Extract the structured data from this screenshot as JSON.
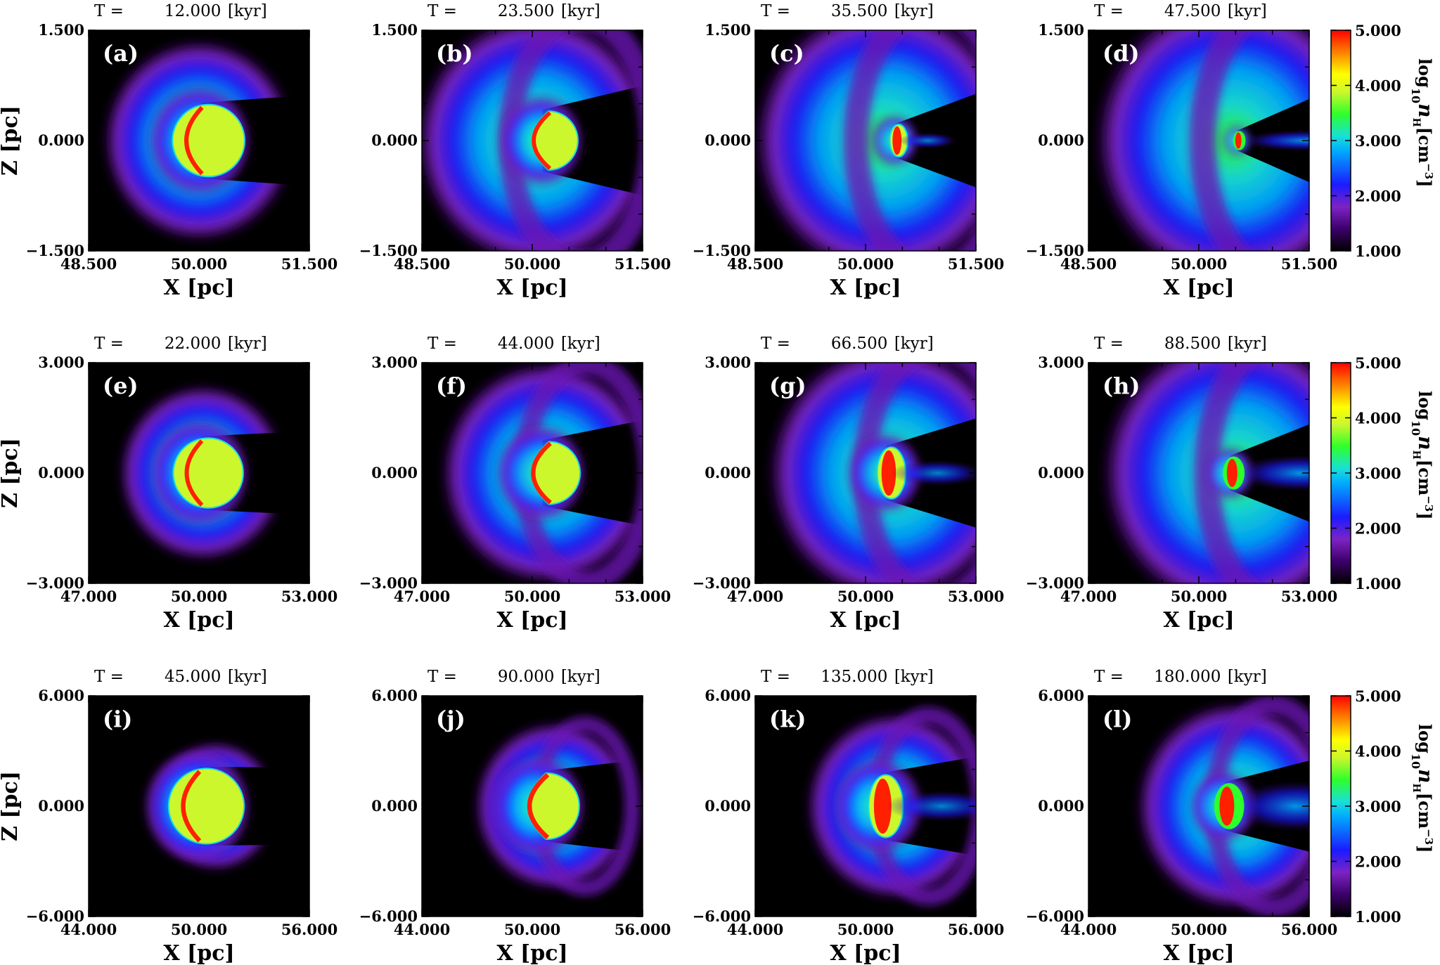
{
  "figure": {
    "colorbar_label_prefix": "log",
    "colorbar_label_sub": "10",
    "colorbar_label_var": "n",
    "colorbar_label_varsub": "H",
    "colorbar_label_unit": "[cm",
    "colorbar_label_exp": "−3",
    "colorbar_label_close": "]"
  },
  "chart_data": [
    {
      "panel": "(a)",
      "row": 0,
      "time_prefix": "T =",
      "time": "12.000",
      "time_unit": "[kyr]",
      "xlabel": "X [pc]",
      "ylabel": "Z [pc]",
      "xlim": [
        48.5,
        51.5
      ],
      "ylim": [
        -1.5,
        1.5
      ],
      "xticks": [
        "48.500",
        "50.000",
        "51.500"
      ],
      "yticks": [
        "1.500",
        "0.000",
        "−1.500"
      ],
      "clump": {
        "cx": 50.13,
        "r": 0.49,
        "state": "sphere"
      },
      "shell": {
        "cx": 50.0,
        "r": 1.4,
        "spread": 0.45,
        "curl": 0.0
      }
    },
    {
      "panel": "(b)",
      "row": 0,
      "time_prefix": "T =",
      "time": "23.500",
      "time_unit": "[kyr]",
      "xlabel": "X [pc]",
      "ylabel": "Z [pc]",
      "xlim": [
        48.5,
        51.5
      ],
      "ylim": [
        -1.5,
        1.5
      ],
      "xticks": [
        "48.500",
        "50.000",
        "51.500"
      ],
      "yticks": [
        "1.500",
        "0.000",
        "−1.500"
      ],
      "clump": {
        "cx": 50.22,
        "r": 0.4,
        "state": "cap"
      },
      "shell": {
        "cx": 50.05,
        "r": 1.75,
        "spread": 0.5,
        "curl": 0.55
      }
    },
    {
      "panel": "(c)",
      "row": 0,
      "time_prefix": "T =",
      "time": "35.500",
      "time_unit": "[kyr]",
      "xlabel": "X [pc]",
      "ylabel": "Z [pc]",
      "xlim": [
        48.5,
        51.5
      ],
      "ylim": [
        -1.5,
        1.5
      ],
      "xticks": [
        "48.500",
        "50.000",
        "51.500"
      ],
      "yticks": [
        "1.500",
        "0.000",
        "−1.500"
      ],
      "clump": {
        "cx": 50.45,
        "r": 0.22,
        "state": "core"
      },
      "shell": {
        "cx": 50.25,
        "r": 1.9,
        "spread": 0.55,
        "curl": 0.8
      }
    },
    {
      "panel": "(d)",
      "row": 0,
      "time_prefix": "T =",
      "time": "47.500",
      "time_unit": "[kyr]",
      "xlabel": "X [pc]",
      "ylabel": "Z [pc]",
      "xlim": [
        48.5,
        51.5
      ],
      "ylim": [
        -1.5,
        1.5
      ],
      "xticks": [
        "48.500",
        "50.000",
        "51.500"
      ],
      "yticks": [
        "1.500",
        "0.000",
        "−1.500"
      ],
      "clump": {
        "cx": 50.55,
        "r": 0.13,
        "state": "tail"
      },
      "shell": {
        "cx": 50.45,
        "r": 2.0,
        "spread": 0.6,
        "curl": 0.9
      }
    },
    {
      "panel": "(e)",
      "row": 1,
      "time_prefix": "T =",
      "time": "22.000",
      "time_unit": "[kyr]",
      "xlabel": "X [pc]",
      "ylabel": "Z [pc]",
      "xlim": [
        47,
        53
      ],
      "ylim": [
        -3,
        3
      ],
      "xticks": [
        "47.000",
        "50.000",
        "53.000"
      ],
      "yticks": [
        "3.000",
        "0.000",
        "−3.000"
      ],
      "clump": {
        "cx": 50.25,
        "r": 0.95,
        "state": "sphere"
      },
      "shell": {
        "cx": 50.1,
        "r": 2.45,
        "spread": 0.45,
        "curl": 0.0
      }
    },
    {
      "panel": "(f)",
      "row": 1,
      "time_prefix": "T =",
      "time": "44.000",
      "time_unit": "[kyr]",
      "xlabel": "X [pc]",
      "ylabel": "Z [pc]",
      "xlim": [
        47,
        53
      ],
      "ylim": [
        -3,
        3
      ],
      "xticks": [
        "47.000",
        "50.000",
        "53.000"
      ],
      "yticks": [
        "3.000",
        "0.000",
        "−3.000"
      ],
      "clump": {
        "cx": 50.45,
        "r": 0.85,
        "state": "cap"
      },
      "shell": {
        "cx": 50.4,
        "r": 3.1,
        "spread": 0.5,
        "curl": 0.6
      }
    },
    {
      "panel": "(g)",
      "row": 1,
      "time_prefix": "T =",
      "time": "66.500",
      "time_unit": "[kyr]",
      "xlabel": "X [pc]",
      "ylabel": "Z [pc]",
      "xlim": [
        47,
        53
      ],
      "ylim": [
        -3,
        3
      ],
      "xticks": [
        "47.000",
        "50.000",
        "53.000"
      ],
      "yticks": [
        "3.000",
        "0.000",
        "−3.000"
      ],
      "clump": {
        "cx": 50.7,
        "r": 0.7,
        "state": "core"
      },
      "shell": {
        "cx": 50.7,
        "r": 3.6,
        "spread": 0.55,
        "curl": 0.8
      }
    },
    {
      "panel": "(h)",
      "row": 1,
      "time_prefix": "T =",
      "time": "88.500",
      "time_unit": "[kyr]",
      "xlabel": "X [pc]",
      "ylabel": "Z [pc]",
      "xlim": [
        47,
        53
      ],
      "ylim": [
        -3,
        3
      ],
      "xticks": [
        "47.000",
        "50.000",
        "53.000"
      ],
      "yticks": [
        "3.000",
        "0.000",
        "−3.000"
      ],
      "clump": {
        "cx": 50.95,
        "r": 0.45,
        "state": "tail"
      },
      "shell": {
        "cx": 51.0,
        "r": 3.9,
        "spread": 0.6,
        "curl": 0.9
      }
    },
    {
      "panel": "(i)",
      "row": 2,
      "time_prefix": "T =",
      "time": "45.000",
      "time_unit": "[kyr]",
      "xlabel": "X [pc]",
      "ylabel": "Z [pc]",
      "xlim": [
        44,
        56
      ],
      "ylim": [
        -6,
        6
      ],
      "xticks": [
        "44.000",
        "50.000",
        "56.000"
      ],
      "yticks": [
        "6.000",
        "0.000",
        "−6.000"
      ],
      "clump": {
        "cx": 50.4,
        "r": 2.05,
        "state": "sphere"
      },
      "shell": {
        "cx": 50.9,
        "r": 3.6,
        "spread": 0.45,
        "curl": 0.0
      }
    },
    {
      "panel": "(j)",
      "row": 2,
      "time_prefix": "T =",
      "time": "90.000",
      "time_unit": "[kyr]",
      "xlabel": "X [pc]",
      "ylabel": "Z [pc]",
      "xlim": [
        44,
        56
      ],
      "ylim": [
        -6,
        6
      ],
      "xticks": [
        "44.000",
        "50.000",
        "56.000"
      ],
      "yticks": [
        "6.000",
        "0.000",
        "−6.000"
      ],
      "clump": {
        "cx": 50.75,
        "r": 1.8,
        "state": "cap"
      },
      "shell": {
        "cx": 51.2,
        "r": 4.7,
        "spread": 0.5,
        "curl": 0.6
      }
    },
    {
      "panel": "(k)",
      "row": 2,
      "time_prefix": "T =",
      "time": "135.000",
      "time_unit": "[kyr]",
      "xlabel": "X [pc]",
      "ylabel": "Z [pc]",
      "xlim": [
        44,
        56
      ],
      "ylim": [
        -6,
        6
      ],
      "xticks": [
        "44.000",
        "50.000",
        "56.000"
      ],
      "yticks": [
        "6.000",
        "0.000",
        "−6.000"
      ],
      "clump": {
        "cx": 51.1,
        "r": 1.7,
        "state": "core"
      },
      "shell": {
        "cx": 51.6,
        "r": 5.2,
        "spread": 0.55,
        "curl": 0.8
      }
    },
    {
      "panel": "(l)",
      "row": 2,
      "time_prefix": "T =",
      "time": "180.000",
      "time_unit": "[kyr]",
      "xlabel": "X [pc]",
      "ylabel": "Z [pc]",
      "xlim": [
        44,
        56
      ],
      "ylim": [
        -6,
        6
      ],
      "xticks": [
        "44.000",
        "50.000",
        "56.000"
      ],
      "yticks": [
        "6.000",
        "0.000",
        "−6.000"
      ],
      "clump": {
        "cx": 51.65,
        "r": 1.25,
        "state": "tail"
      },
      "shell": {
        "cx": 52.0,
        "r": 5.8,
        "spread": 0.6,
        "curl": 0.9
      }
    }
  ],
  "colorbar": {
    "ticks": [
      "5.000",
      "4.000",
      "3.000",
      "2.000",
      "1.000"
    ],
    "range": [
      1.0,
      5.0
    ],
    "colormap": [
      "#000000",
      "#3c006a",
      "#7d23c4",
      "#1b1bff",
      "#00a8ff",
      "#18e0d8",
      "#2fff2a",
      "#ccf72c",
      "#ffff00",
      "#ff8000",
      "#ff0000"
    ]
  }
}
